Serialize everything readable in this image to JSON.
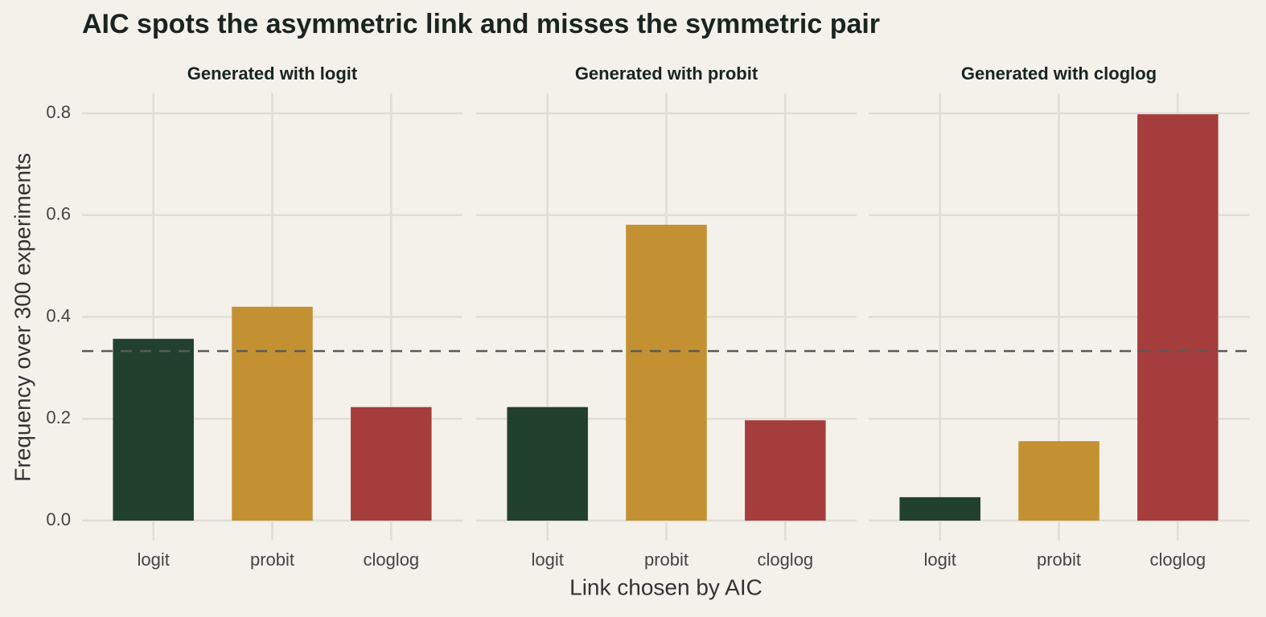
{
  "chart_data": {
    "type": "bar",
    "title": "AIC spots the asymmetric link and misses the symmetric pair",
    "x_label": "Link chosen by AIC",
    "y_label": "Frequency over 300 experiments",
    "categories": [
      "logit",
      "probit",
      "cloglog"
    ],
    "colors": [
      "#21402e",
      "#c39132",
      "#a63d3d"
    ],
    "ylim": [
      -0.02,
      0.84
    ],
    "yticks": [
      {
        "value": 0,
        "label": "0.0"
      },
      0.2,
      0.4,
      0.6,
      0.8
    ],
    "grid": true,
    "reference_line": 0.333,
    "facets": [
      {
        "title": "Generated with logit",
        "values": [
          0.357,
          0.42,
          0.223
        ]
      },
      {
        "title": "Generated with probit",
        "values": [
          0.223,
          0.581,
          0.197
        ]
      },
      {
        "title": "Generated with cloglog",
        "values": [
          0.046,
          0.156,
          0.798
        ]
      }
    ]
  }
}
